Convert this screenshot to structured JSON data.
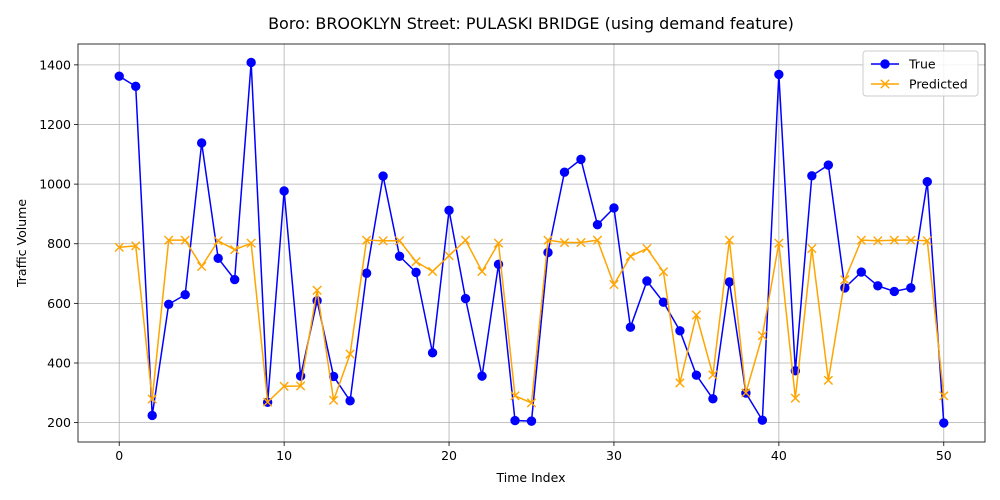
{
  "chart_data": {
    "type": "line",
    "title": "Boro: BROOKLYN Street: PULASKI BRIDGE (using demand feature)",
    "xlabel": "Time Index",
    "ylabel": "Traffic Volume",
    "xlim": [
      -2.5,
      52.5
    ],
    "ylim": [
      135,
      1470
    ],
    "xticks": [
      0,
      10,
      20,
      30,
      40,
      50
    ],
    "yticks": [
      200,
      400,
      600,
      800,
      1000,
      1200,
      1400
    ],
    "grid": true,
    "legend": "top-right",
    "series": [
      {
        "name": "True",
        "color": "#0000ff",
        "marker": "circle",
        "values": [
          1362,
          1328,
          224,
          597,
          629,
          1138,
          751,
          680,
          1408,
          268,
          977,
          356,
          609,
          355,
          273,
          701,
          1027,
          758,
          704,
          434,
          912,
          616,
          356,
          731,
          207,
          205,
          771,
          1040,
          1083,
          864,
          920,
          520,
          675,
          604,
          508,
          359,
          280,
          672,
          299,
          208,
          1368,
          374,
          1028,
          1064,
          652,
          705,
          659,
          640,
          652,
          1008,
          199
        ]
      },
      {
        "name": "Predicted",
        "color": "#ffa500",
        "marker": "x",
        "values": [
          788,
          793,
          279,
          812,
          812,
          724,
          810,
          780,
          802,
          269,
          322,
          323,
          644,
          275,
          430,
          812,
          810,
          810,
          740,
          707,
          760,
          812,
          707,
          802,
          290,
          266,
          812,
          804,
          804,
          812,
          663,
          758,
          784,
          706,
          333,
          561,
          360,
          812,
          300,
          492,
          802,
          282,
          784,
          342,
          679,
          812,
          810,
          812,
          812,
          810,
          290
        ]
      }
    ]
  }
}
